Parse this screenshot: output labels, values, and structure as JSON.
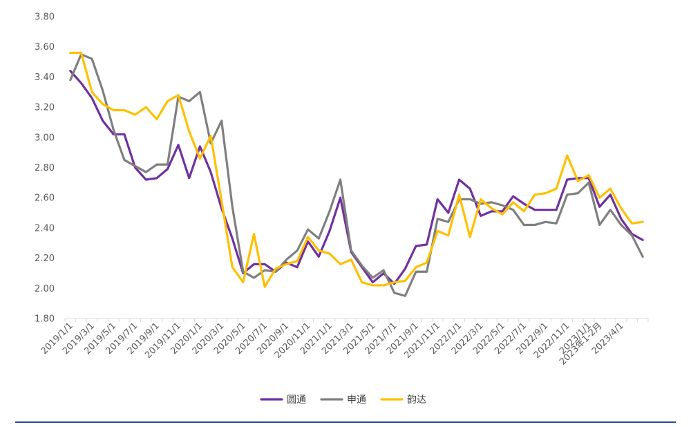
{
  "chart_data": {
    "type": "line",
    "title": "",
    "xlabel": "",
    "ylabel": "",
    "ylim": [
      1.8,
      3.8
    ],
    "ytick_step": 0.2,
    "yticks": [
      "1.80",
      "2.00",
      "2.20",
      "2.40",
      "2.60",
      "2.80",
      "3.00",
      "3.20",
      "3.40",
      "3.60",
      "3.80"
    ],
    "grid": false,
    "legend_position": "bottom",
    "categories": [
      "2019/1/1",
      "2019/2/1",
      "2019/3/1",
      "2019/4/1",
      "2019/5/1",
      "2019/6/1",
      "2019/7/1",
      "2019/8/1",
      "2019/9/1",
      "2019/10/1",
      "2019/11/1",
      "2019/12/1",
      "2020/1/1",
      "2020/2/1",
      "2020/3/1",
      "2020/4/1",
      "2020/5/1",
      "2020/6/1",
      "2020/7/1",
      "2020/8/1",
      "2020/9/1",
      "2020/10/1",
      "2020/11/1",
      "2020/12/1",
      "2021/1/1",
      "2021/2/1",
      "2021/3/1",
      "2021/4/1",
      "2021/5/1",
      "2021/6/1",
      "2021/7/1",
      "2021/8/1",
      "2021/9/1",
      "2021/10/1",
      "2021/11/1",
      "2021/12/1",
      "2022/1/1",
      "2022/2/1",
      "2022/3/1",
      "2022/4/1",
      "2022/5/1",
      "2022/6/1",
      "2022/7/1",
      "2022/8/1",
      "2022/9/1",
      "2022/10/1",
      "2022/11/1",
      "2022/12/1",
      "2023/1/1",
      "2023年1-2月",
      "2023/3/1",
      "2023/4/1",
      "2023/5/1",
      "2023/6/1"
    ],
    "xtick_labels": [
      "2019/1/1",
      "2019/3/1",
      "2019/5/1",
      "2019/7/1",
      "2019/9/1",
      "2019/11/1",
      "2020/1/1",
      "2020/3/1",
      "2020/5/1",
      "2020/7/1",
      "2020/9/1",
      "2020/11/1",
      "2021/1/1",
      "2021/3/1",
      "2021/5/1",
      "2021/7/1",
      "2021/9/1",
      "2021/11/1",
      "2022/1/1",
      "2022/3/1",
      "2022/5/1",
      "2022/7/1",
      "2022/9/1",
      "2022/11/1",
      "2023/1/1",
      "2023年1-2月",
      "2023/4/1"
    ],
    "xtick_indices": [
      0,
      2,
      4,
      6,
      8,
      10,
      12,
      14,
      16,
      18,
      20,
      22,
      24,
      26,
      28,
      30,
      32,
      34,
      36,
      38,
      40,
      42,
      44,
      46,
      48,
      49,
      51
    ],
    "series": [
      {
        "name": "圆通",
        "color": "#7030A0",
        "values": [
          3.44,
          3.36,
          3.26,
          3.11,
          3.02,
          3.02,
          2.8,
          2.72,
          2.73,
          2.79,
          2.95,
          2.73,
          2.94,
          2.77,
          2.53,
          2.33,
          2.1,
          2.16,
          2.16,
          2.11,
          2.17,
          2.14,
          2.31,
          2.21,
          2.38,
          2.6,
          2.24,
          2.14,
          2.04,
          2.1,
          2.03,
          2.13,
          2.28,
          2.29,
          2.59,
          2.5,
          2.72,
          2.66,
          2.48,
          2.51,
          2.51,
          2.61,
          2.56,
          2.52,
          2.52,
          2.52,
          2.72,
          2.73,
          2.73,
          2.54,
          2.62,
          2.46,
          2.36,
          2.32
        ]
      },
      {
        "name": "申通",
        "color": "#7F7F7F",
        "values": [
          3.38,
          3.55,
          3.52,
          3.31,
          3.05,
          2.85,
          2.81,
          2.77,
          2.82,
          2.82,
          3.27,
          3.24,
          3.3,
          2.96,
          3.11,
          2.54,
          2.11,
          2.07,
          2.12,
          2.11,
          2.19,
          2.25,
          2.39,
          2.33,
          2.51,
          2.72,
          2.25,
          2.15,
          2.07,
          2.12,
          1.97,
          1.95,
          2.11,
          2.11,
          2.46,
          2.44,
          2.59,
          2.59,
          2.56,
          2.57,
          2.55,
          2.52,
          2.42,
          2.42,
          2.44,
          2.43,
          2.62,
          2.63,
          2.7,
          2.42,
          2.52,
          2.42,
          2.35,
          2.21
        ]
      },
      {
        "name": "韵达",
        "color": "#FFC000",
        "values": [
          3.56,
          3.56,
          3.3,
          3.22,
          3.18,
          3.18,
          3.15,
          3.2,
          3.12,
          3.24,
          3.28,
          3.04,
          2.86,
          3.01,
          2.58,
          2.14,
          2.04,
          2.36,
          2.01,
          2.13,
          2.16,
          2.18,
          2.34,
          2.25,
          2.23,
          2.16,
          2.19,
          2.04,
          2.02,
          2.02,
          2.04,
          2.05,
          2.14,
          2.17,
          2.38,
          2.35,
          2.62,
          2.34,
          2.59,
          2.53,
          2.49,
          2.57,
          2.51,
          2.62,
          2.63,
          2.66,
          2.88,
          2.71,
          2.75,
          2.6,
          2.66,
          2.53,
          2.43,
          2.44
        ]
      }
    ]
  }
}
